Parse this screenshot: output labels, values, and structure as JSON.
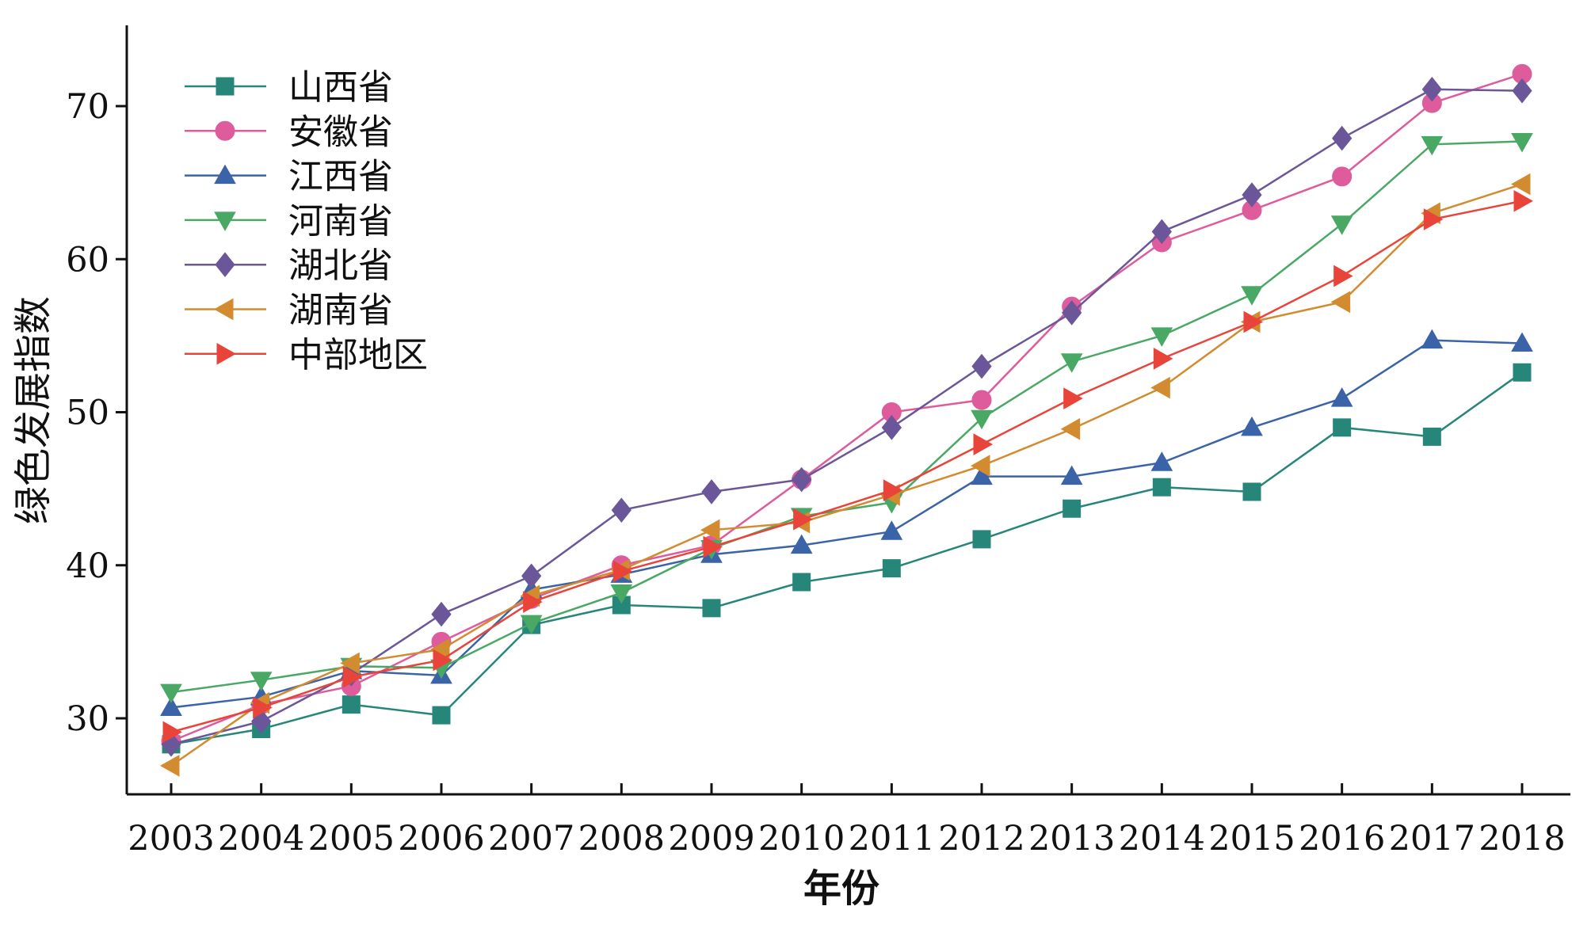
{
  "chart_data": {
    "type": "line",
    "title": "",
    "xlabel": "年份",
    "ylabel": "绿色发展指数",
    "ylim": [
      25,
      75
    ],
    "yticks": [
      30,
      40,
      50,
      60,
      70
    ],
    "x": [
      "2003",
      "2004",
      "2005",
      "2006",
      "2007",
      "2008",
      "2009",
      "2010",
      "2011",
      "2012",
      "2013",
      "2014",
      "2015",
      "2016",
      "2017",
      "2018"
    ],
    "legend_position": "top-left",
    "grid": false,
    "series": [
      {
        "name": "山西省",
        "color": "#27867a",
        "marker": "square",
        "values": [
          28.3,
          29.3,
          30.9,
          30.2,
          36.1,
          37.4,
          37.2,
          38.9,
          39.8,
          41.7,
          43.7,
          45.1,
          44.8,
          49.0,
          48.4,
          52.6
        ]
      },
      {
        "name": "安徽省",
        "color": "#de5b9c",
        "marker": "circle",
        "values": [
          28.5,
          30.9,
          32.1,
          35.0,
          37.8,
          40.0,
          41.3,
          45.6,
          50.0,
          50.8,
          56.9,
          61.1,
          63.2,
          65.4,
          70.2,
          72.1
        ]
      },
      {
        "name": "江西省",
        "color": "#3b63a8",
        "marker": "triangle-up",
        "values": [
          30.7,
          31.4,
          33.1,
          32.8,
          38.4,
          39.4,
          40.7,
          41.3,
          42.2,
          45.8,
          45.8,
          46.7,
          49.0,
          50.9,
          54.7,
          54.5
        ]
      },
      {
        "name": "河南省",
        "color": "#4aa865",
        "marker": "triangle-down",
        "values": [
          31.7,
          32.5,
          33.4,
          33.3,
          36.2,
          38.2,
          41.1,
          43.2,
          44.1,
          49.6,
          53.3,
          55.0,
          57.7,
          62.3,
          67.5,
          67.7
        ]
      },
      {
        "name": "湖北省",
        "color": "#6a5699",
        "marker": "diamond",
        "values": [
          28.3,
          29.8,
          32.9,
          36.8,
          39.3,
          43.6,
          44.8,
          45.6,
          49.0,
          53.0,
          56.5,
          61.8,
          64.2,
          67.9,
          71.1,
          71.0
        ]
      },
      {
        "name": "湖南省",
        "color": "#d38b30",
        "marker": "triangle-left",
        "values": [
          26.9,
          31.0,
          33.6,
          34.5,
          38.0,
          39.7,
          42.3,
          42.8,
          44.6,
          46.5,
          48.9,
          51.6,
          55.9,
          57.2,
          63.0,
          64.9
        ]
      },
      {
        "name": "中部地区",
        "color": "#e9443a",
        "marker": "triangle-right",
        "values": [
          29.1,
          30.7,
          32.7,
          33.8,
          37.6,
          39.6,
          41.2,
          43.0,
          44.9,
          47.9,
          50.9,
          53.5,
          55.9,
          58.9,
          62.6,
          63.8
        ]
      }
    ]
  }
}
